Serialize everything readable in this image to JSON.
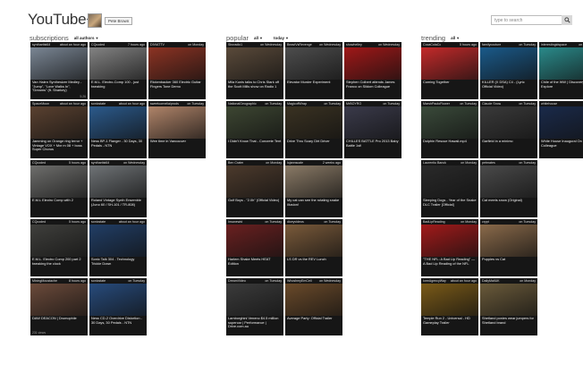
{
  "app": {
    "title": "YouTube+"
  },
  "user": {
    "name": "Pete Brown"
  },
  "search": {
    "placeholder": "type to search"
  },
  "sections": {
    "subscriptions": {
      "title": "subscriptions",
      "filter": "all authors"
    },
    "popular": {
      "title": "popular",
      "filter1": "all",
      "filter2": "today"
    },
    "trending": {
      "title": "trending",
      "filter": "all"
    }
  },
  "columns": [
    {
      "tiles": [
        {
          "channel": "synthartist64",
          "age": "about an hour ago",
          "title": "Van Halen Synthesizer Medley - \"Jump\", \"Love Walks In\", \"Dreams\" (ft. Sharkey)",
          "views": "",
          "duration": "5:26",
          "thumb": "#7a8694"
        },
        {
          "channel": "SpaceMoon",
          "age": "about an hour ago",
          "title": "Jamming on Orange ring terror + Vintage VOX + Mxr m 08 + boss Super Chorus",
          "views": "",
          "duration": "",
          "thumb": "#5a4130"
        },
        {
          "channel": "CQcoded",
          "age": "5 hours ago",
          "title": "E.M.L Electro Comp with 2",
          "views": "",
          "duration": "",
          "thumb": "#6e6e6c"
        },
        {
          "channel": "CQcoded",
          "age": "5 hours ago",
          "title": "E.M.L. Electro Comp 200 part 2 tweaking the clock",
          "views": "",
          "duration": "",
          "thumb": "#3f3f3c"
        },
        {
          "channel": "MixingMoustache",
          "age": "8 hours ago",
          "title": "DAW DEACON | Drumophile",
          "views": "231 views",
          "duration": "",
          "thumb": "#6b4a3a"
        }
      ]
    },
    {
      "tiles": [
        {
          "channel": "CQcoded",
          "age": "7 hours ago",
          "title": "E.M.L. Electro-Comp 100 - just tweaking",
          "views": "",
          "duration": "",
          "thumb": "#838383"
        },
        {
          "channel": "sonicstate",
          "age": "about an hour ago",
          "title": "Ness BP-1 Flanger - 30 Days, 30 Pedals - NTN",
          "views": "",
          "duration": "",
          "thumb": "#2b5a8c"
        },
        {
          "channel": "synthartist64",
          "age": "on Wednesday",
          "title": "Roland Vintage Synth Ensemble (Juno 60 / SH-101 / TR-808)",
          "views": "",
          "duration": "",
          "thumb": "#6f7376"
        },
        {
          "channel": "sonicstate",
          "age": "about an hour ago",
          "title": "Sonic Talk 304 - Technology Trickle Down",
          "views": "",
          "duration": "",
          "thumb": "#213e66"
        },
        {
          "channel": "sonicstate",
          "age": "on Tuesday",
          "title": "Ness CD-2 Overdrive Distortion - 30 Days, 30 Pedals - NTN",
          "views": "",
          "duration": "",
          "thumb": "#274b7c"
        }
      ]
    },
    {
      "tiles": [
        {
          "channel": "DIVIATTV",
          "age": "on Monday",
          "title": "Rickenbacker 360 Electric Guitar Fingers Tone Demo",
          "views": "",
          "duration": "",
          "thumb": "#8c3323"
        },
        {
          "channel": "sweetcornelia/prods",
          "age": "on Tuesday",
          "title": "Wee time in Vancouver",
          "views": "",
          "duration": "",
          "thumb": "#b08469"
        }
      ]
    },
    {
      "tiles": [
        {
          "channel": "Sbcradio1",
          "age": "on Wednesday",
          "title": "Mila Kunis talks to Chris Stark off the Scott Mills show on Radio 1",
          "views": "",
          "duration": "",
          "thumb": "#5a4a3a"
        },
        {
          "channel": "NationalGeographic",
          "age": "on Tuesday",
          "title": "I Didn't Know That - Concrete Tent",
          "views": "",
          "duration": "",
          "thumb": "#3d4632"
        },
        {
          "channel": "Ben Crater",
          "age": "on Monday",
          "title": "Golf Boys - \"2.0h\" (Official Video)",
          "views": "",
          "duration": "",
          "thumb": "#4c3a2c"
        },
        {
          "channel": "Insanewid",
          "age": "on Tuesday",
          "title": "Harlem Shake Meets HEAT Edition",
          "views": "",
          "duration": "",
          "thumb": "#6a2020"
        },
        {
          "channel": "DreamVideo",
          "age": "on Tuesday",
          "title": "Lamborghini Veneno $4.5 million supercar | Performance | Drive.com.au",
          "views": "",
          "duration": "",
          "thumb": "#3b3b3b"
        }
      ]
    },
    {
      "tiles": [
        {
          "channel": "BeastVsRevenge",
          "age": "on Wednesday",
          "title": "Elevator Murder Experiment",
          "views": "",
          "duration": "",
          "thumb": "#4d4d4d"
        },
        {
          "channel": "MagicoffWrap",
          "age": "on Tuesday",
          "title": "Drive Thru Scary Dirt Driver",
          "views": "",
          "duration": "",
          "thumb": "#3a3222"
        },
        {
          "channel": "lojannscale",
          "age": "2 weeks ago",
          "title": "My cat can see the rotating snake illusion!",
          "views": "",
          "duration": "",
          "thumb": "#8a7a66"
        },
        {
          "channel": "diceyvideos",
          "age": "on Tuesday",
          "title": "LS DR vs the REV Lunch",
          "views": "",
          "duration": "",
          "thumb": "#7a5a3a"
        },
        {
          "channel": "WhoshmyEmCell",
          "age": "on Wednesday",
          "title": "Average Party: Official Trailer",
          "views": "",
          "duration": "",
          "thumb": "#6a4a2a"
        }
      ]
    },
    {
      "tiles": [
        {
          "channel": "showhelley",
          "age": "on Wednesday",
          "title": "Stephen Colbert attends James Franco on Sildom Colleague",
          "views": "",
          "duration": "",
          "thumb": "#a01818"
        },
        {
          "channel": "MrBOYRO",
          "age": "on Tuesday",
          "title": "CHILLES BATTLE Pro 2013 Baby Battle 1st!",
          "views": "",
          "duration": "",
          "thumb": "#3a3a4a"
        }
      ]
    },
    {
      "tiles": [
        {
          "channel": "CocaColaCo",
          "age": "5 hours ago",
          "title": "Coming Together",
          "views": "",
          "duration": "",
          "thumb": "#c42a2a"
        },
        {
          "channel": "MarshPaoloFlower",
          "age": "on Tuesday",
          "title": "Dolphin Rescue Hawaii.mp4",
          "views": "",
          "duration": "",
          "thumb": "#3a4a3a"
        },
        {
          "channel": "Laurentiu Banck",
          "age": "on Monday",
          "title": "Sleeping Dogs - Year of the Snake DLC Trailer [Official]",
          "views": "",
          "duration": "",
          "thumb": "#2a2a2a"
        },
        {
          "channel": "BadLipReading",
          "age": "on Monday",
          "title": "\"THE NFL: A Bad Lip Reading\" — A Bad Lip Reading of the NFL",
          "views": "",
          "duration": "",
          "thumb": "#a21a1a"
        },
        {
          "channel": "IceeAgencyWay",
          "age": "about an hour ago",
          "title": "Temple Run 2 - Universal - HD Gameplay Trailer",
          "views": "",
          "duration": "",
          "thumb": "#7a5a18"
        }
      ]
    },
    {
      "tiles": [
        {
          "channel": "familycouture",
          "age": "on Tuesday",
          "title": "KILLER (X DSA) C4 - (Lyric Official Video)",
          "views": "",
          "duration": "",
          "thumb": "#1a5a8a"
        },
        {
          "channel": "Claude Snow",
          "age": "on Tuesday",
          "title": "Garfield in a minimo",
          "views": "",
          "duration": "",
          "thumb": "#3a3a3a"
        },
        {
          "channel": "petmates",
          "age": "on Tuesday",
          "title": "Cat meets snow (Original)",
          "views": "",
          "duration": "",
          "thumb": "#4a4a4a"
        },
        {
          "channel": "crypt",
          "age": "on Tuesday",
          "title": "Puppies vs Cat",
          "views": "",
          "duration": "",
          "thumb": "#8a6a4a"
        },
        {
          "channel": "DailyMailUK",
          "age": "on Monday",
          "title": "Shetland ponies wear jumpers for Shetland brand",
          "views": "",
          "duration": "",
          "thumb": "#6a5a3a"
        }
      ]
    },
    {
      "tiles": [
        {
          "channel": "interestingidspace",
          "age": "on Monday",
          "title": "Chile of the WW | Discovery Explore",
          "views": "",
          "duration": "",
          "thumb": "#2a8a8a"
        },
        {
          "channel": "whitehouse",
          "age": "",
          "title": "White House Inaugural On Sildom Colleague",
          "views": "",
          "duration": "",
          "thumb": "#1a2a4a"
        }
      ]
    }
  ]
}
